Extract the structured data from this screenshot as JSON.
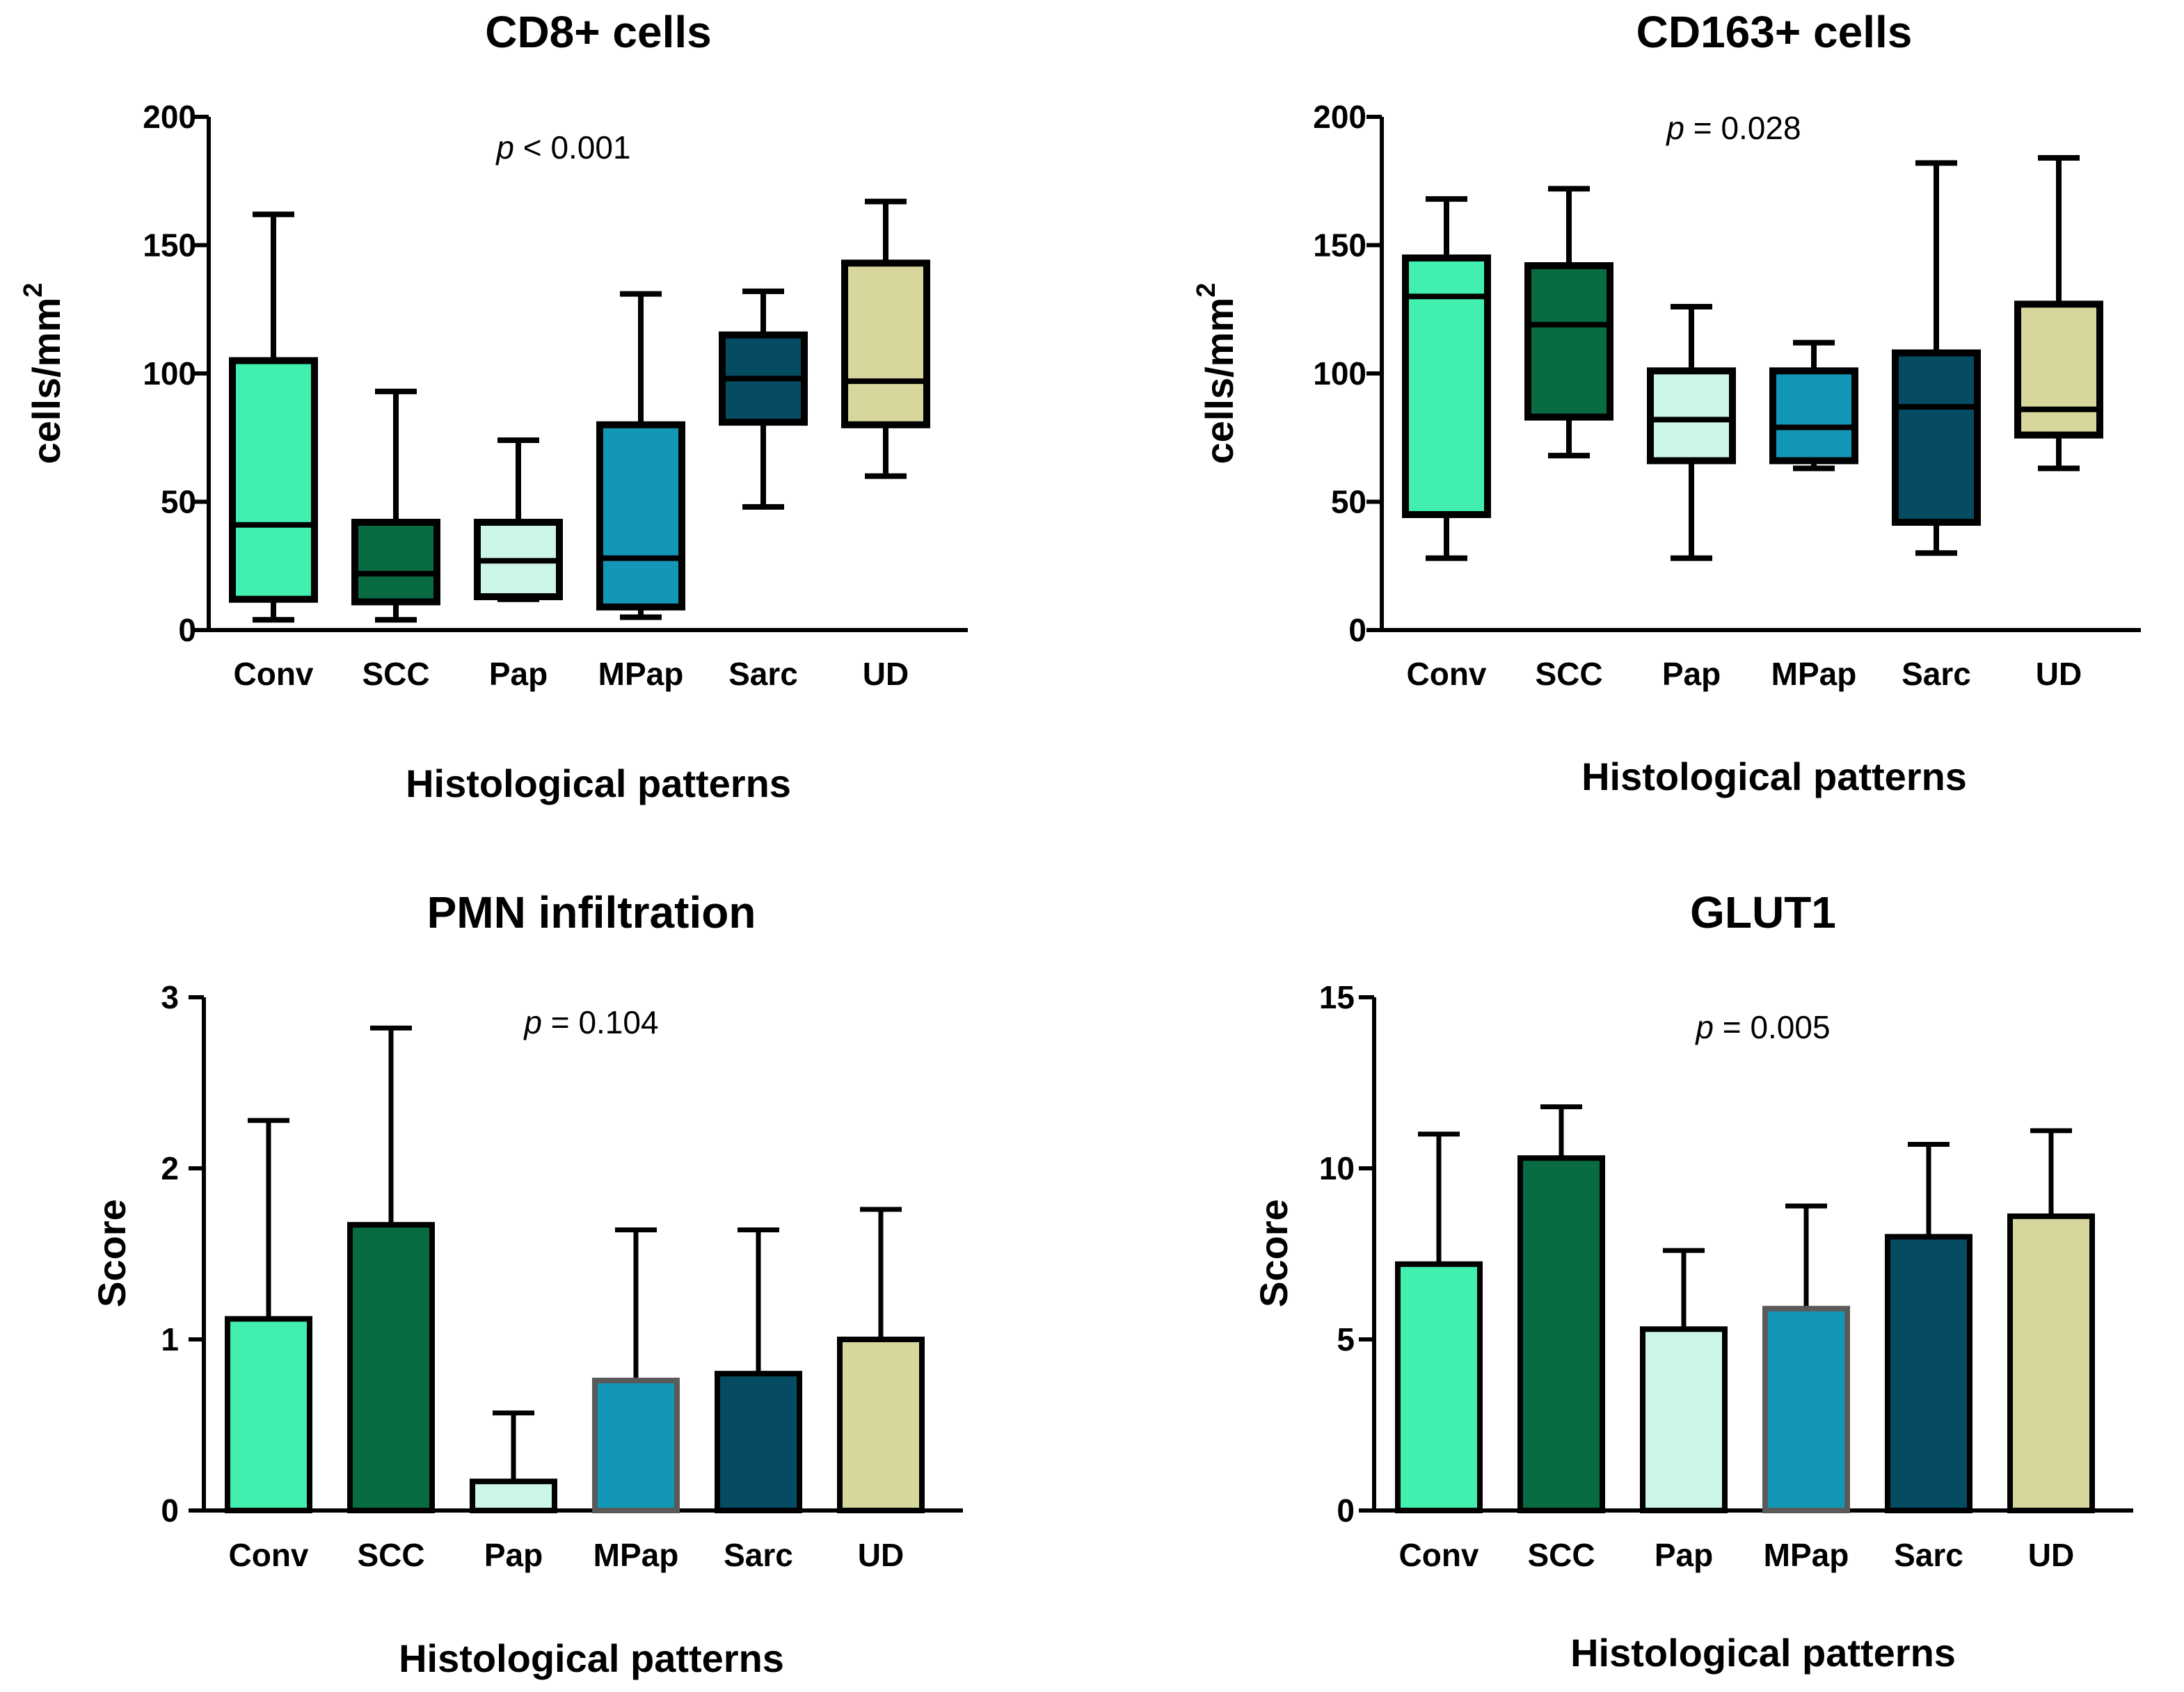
{
  "colors": {
    "Conv": "#41EFAE",
    "SCC": "#086B42",
    "Pap": "#CCF7E6",
    "MPap": "#1397B6",
    "Sarc": "#054C62",
    "UD": "#D6D69D",
    "outline": "#000000",
    "mpap_bar_outline": "#5A5A5A"
  },
  "chart_data": [
    {
      "type": "box",
      "title": "CD8+ cells",
      "p_symbol": "p",
      "p_value": "< 0.001",
      "xlabel": "Histological patterns",
      "ylabel": "cells/mm",
      "ylabel_sup": "2",
      "ylim": [
        0,
        200
      ],
      "yticks": [
        0,
        50,
        100,
        150,
        200
      ],
      "categories": [
        "Conv",
        "SCC",
        "Pap",
        "MPap",
        "Sarc",
        "UD"
      ],
      "boxes": [
        {
          "min": 4,
          "q1": 12,
          "median": 41,
          "q3": 105,
          "max": 162
        },
        {
          "min": 4,
          "q1": 11,
          "median": 22,
          "q3": 42,
          "max": 93
        },
        {
          "min": 12,
          "q1": 13,
          "median": 27,
          "q3": 42,
          "max": 74
        },
        {
          "min": 5,
          "q1": 9,
          "median": 28,
          "q3": 80,
          "max": 131
        },
        {
          "min": 48,
          "q1": 81,
          "median": 98,
          "q3": 115,
          "max": 132
        },
        {
          "min": 60,
          "q1": 80,
          "median": 97,
          "q3": 143,
          "max": 167
        }
      ]
    },
    {
      "type": "box",
      "title": "CD163+ cells",
      "p_symbol": "p",
      "p_value": "= 0.028",
      "xlabel": "Histological patterns",
      "ylabel": "cells/mm",
      "ylabel_sup": "2",
      "ylim": [
        0,
        200
      ],
      "yticks": [
        0,
        50,
        100,
        150,
        200
      ],
      "categories": [
        "Conv",
        "SCC",
        "Pap",
        "MPap",
        "Sarc",
        "UD"
      ],
      "boxes": [
        {
          "min": 28,
          "q1": 45,
          "median": 130,
          "q3": 145,
          "max": 168
        },
        {
          "min": 68,
          "q1": 83,
          "median": 119,
          "q3": 142,
          "max": 172
        },
        {
          "min": 28,
          "q1": 66,
          "median": 82,
          "q3": 101,
          "max": 126
        },
        {
          "min": 63,
          "q1": 66,
          "median": 79,
          "q3": 101,
          "max": 112
        },
        {
          "min": 30,
          "q1": 42,
          "median": 87,
          "q3": 108,
          "max": 182
        },
        {
          "min": 63,
          "q1": 76,
          "median": 86,
          "q3": 127,
          "max": 184
        }
      ]
    },
    {
      "type": "bar",
      "title": "PMN infiltration",
      "p_symbol": "p",
      "p_value": "= 0.104",
      "xlabel": "Histological patterns",
      "ylabel": "Score",
      "ylim": [
        0,
        3
      ],
      "yticks": [
        0,
        1,
        2,
        3
      ],
      "categories": [
        "Conv",
        "SCC",
        "Pap",
        "MPap",
        "Sarc",
        "UD"
      ],
      "values": [
        1.12,
        1.67,
        0.17,
        0.76,
        0.8,
        1.0
      ],
      "errors": [
        1.16,
        1.15,
        0.4,
        0.88,
        0.84,
        0.76
      ]
    },
    {
      "type": "bar",
      "title": "GLUT1",
      "p_symbol": "p",
      "p_value": "= 0.005",
      "xlabel": "Histological patterns",
      "ylabel": "Score",
      "ylim": [
        0,
        15
      ],
      "yticks": [
        0,
        5,
        10,
        15
      ],
      "categories": [
        "Conv",
        "SCC",
        "Pap",
        "MPap",
        "Sarc",
        "UD"
      ],
      "values": [
        7.2,
        10.3,
        5.3,
        5.9,
        8.0,
        8.6
      ],
      "errors": [
        3.8,
        1.5,
        2.3,
        3.0,
        2.7,
        2.5
      ]
    }
  ]
}
